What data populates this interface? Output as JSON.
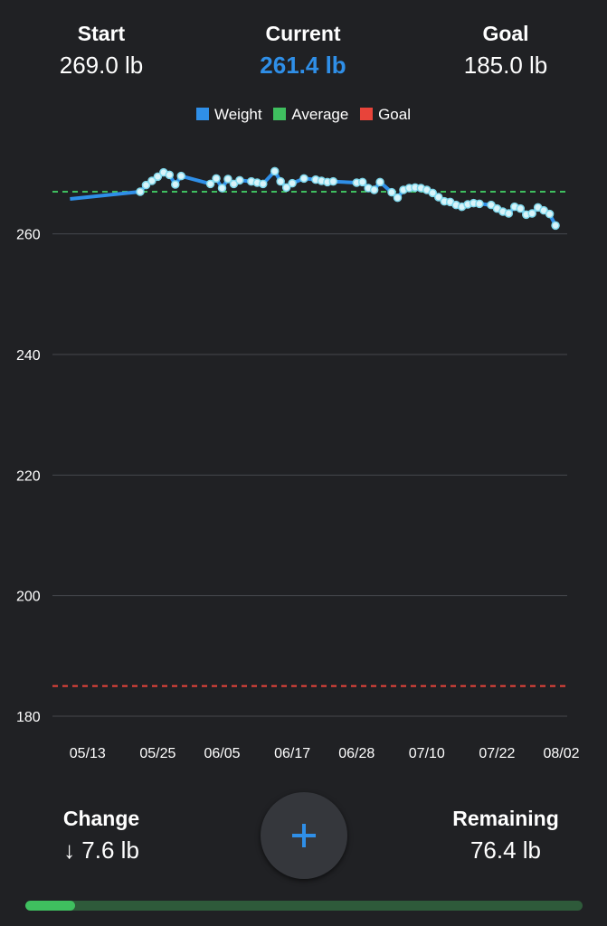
{
  "summary": {
    "start": {
      "label": "Start",
      "value": "269.0 lb"
    },
    "current": {
      "label": "Current",
      "value": "261.4 lb"
    },
    "goal": {
      "label": "Goal",
      "value": "185.0 lb"
    }
  },
  "legend": [
    {
      "label": "Weight",
      "color": "#2f8fe8"
    },
    {
      "label": "Average",
      "color": "#3fbf5f"
    },
    {
      "label": "Goal",
      "color": "#e8443a"
    }
  ],
  "chart_data": {
    "type": "line",
    "series": [
      {
        "name": "Weight",
        "color": "#2f8fe8",
        "points": [
          [
            "05/10",
            265.8
          ],
          [
            "05/22",
            267.0
          ],
          [
            "05/23",
            268.1
          ],
          [
            "05/24",
            268.8
          ],
          [
            "05/25",
            269.5
          ],
          [
            "05/26",
            270.2
          ],
          [
            "05/27",
            269.8
          ],
          [
            "05/28",
            268.2
          ],
          [
            "05/29",
            269.6
          ],
          [
            "06/03",
            268.3
          ],
          [
            "06/04",
            269.2
          ],
          [
            "06/05",
            267.6
          ],
          [
            "06/06",
            269.1
          ],
          [
            "06/07",
            268.3
          ],
          [
            "06/08",
            268.9
          ],
          [
            "06/10",
            268.7
          ],
          [
            "06/11",
            268.5
          ],
          [
            "06/12",
            268.3
          ],
          [
            "06/14",
            270.4
          ],
          [
            "06/15",
            268.7
          ],
          [
            "06/16",
            267.7
          ],
          [
            "06/17",
            268.4
          ],
          [
            "06/19",
            269.2
          ],
          [
            "06/21",
            269.0
          ],
          [
            "06/22",
            268.8
          ],
          [
            "06/23",
            268.6
          ],
          [
            "06/24",
            268.7
          ],
          [
            "06/28",
            268.5
          ],
          [
            "06/29",
            268.6
          ],
          [
            "06/30",
            267.6
          ],
          [
            "07/01",
            267.3
          ],
          [
            "07/02",
            268.6
          ],
          [
            "07/04",
            266.9
          ],
          [
            "07/05",
            266.0
          ],
          [
            "07/06",
            267.3
          ],
          [
            "07/07",
            267.6
          ],
          [
            "07/08",
            267.7
          ],
          [
            "07/09",
            267.6
          ],
          [
            "07/10",
            267.3
          ],
          [
            "07/11",
            266.8
          ],
          [
            "07/12",
            266.1
          ],
          [
            "07/13",
            265.4
          ],
          [
            "07/14",
            265.3
          ],
          [
            "07/15",
            264.8
          ],
          [
            "07/16",
            264.5
          ],
          [
            "07/17",
            264.9
          ],
          [
            "07/18",
            265.1
          ],
          [
            "07/19",
            265.0
          ],
          [
            "07/21",
            264.8
          ],
          [
            "07/22",
            264.2
          ],
          [
            "07/23",
            263.7
          ],
          [
            "07/24",
            263.4
          ],
          [
            "07/25",
            264.5
          ],
          [
            "07/26",
            264.2
          ],
          [
            "07/27",
            263.2
          ],
          [
            "07/28",
            263.4
          ],
          [
            "07/29",
            264.4
          ],
          [
            "07/30",
            263.9
          ],
          [
            "07/31",
            263.3
          ],
          [
            "08/01",
            261.4
          ]
        ]
      }
    ],
    "average": {
      "name": "Average",
      "value": 267.0,
      "color": "#3fbf5f"
    },
    "goal": {
      "name": "Goal",
      "value": 185.0,
      "color": "#e8443a"
    },
    "x_range": [
      "05/07",
      "08/03"
    ],
    "x_ticks": [
      "05/13",
      "05/25",
      "06/05",
      "06/17",
      "06/28",
      "07/10",
      "07/22",
      "08/02"
    ],
    "y_ticks": [
      180,
      200,
      220,
      240,
      260
    ],
    "ylim": [
      180,
      276
    ],
    "grid": true,
    "legend_position": "top"
  },
  "bottom": {
    "change": {
      "label": "Change",
      "value": "↓ 7.6 lb"
    },
    "remaining": {
      "label": "Remaining",
      "value": "76.4 lb"
    }
  },
  "add_button": {
    "icon": "plus-icon"
  },
  "progress": {
    "value": 0.09,
    "color": "#3fbf5f"
  }
}
